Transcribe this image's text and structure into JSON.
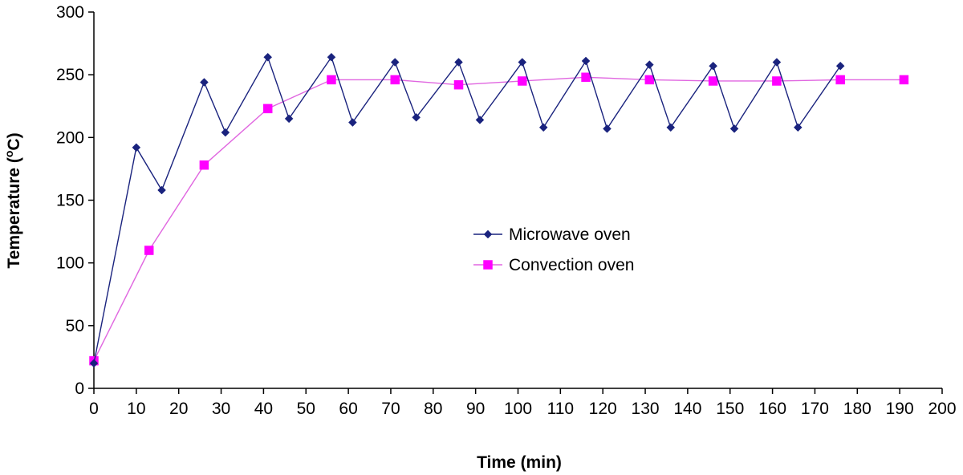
{
  "chart_data": {
    "type": "line",
    "title": "",
    "xlabel": "Time (min)",
    "ylabel_main": "Temperature (",
    "ylabel_sup": "o",
    "ylabel_end": "C)",
    "xlim": [
      0,
      200
    ],
    "ylim": [
      0,
      300
    ],
    "xticks": [
      0,
      10,
      20,
      30,
      40,
      50,
      60,
      70,
      80,
      90,
      100,
      110,
      120,
      130,
      140,
      150,
      160,
      170,
      180,
      190,
      200
    ],
    "yticks": [
      0,
      50,
      100,
      150,
      200,
      250,
      300
    ],
    "grid": false,
    "legend_position": "center",
    "series": [
      {
        "name": "Microwave oven",
        "color": "#1a237e",
        "marker": "diamond",
        "x": [
          0,
          10,
          16,
          26,
          31,
          41,
          46,
          56,
          61,
          71,
          76,
          86,
          91,
          101,
          106,
          116,
          121,
          131,
          136,
          146,
          151,
          161,
          166,
          176
        ],
        "y": [
          20,
          192,
          158,
          244,
          204,
          264,
          215,
          264,
          212,
          260,
          216,
          260,
          214,
          260,
          208,
          261,
          207,
          258,
          208,
          257,
          207,
          260,
          208,
          257
        ]
      },
      {
        "name": "Convection oven",
        "color": "#ff00ff",
        "line_color": "#e066e0",
        "marker": "square",
        "x": [
          0,
          13,
          26,
          41,
          56,
          71,
          86,
          101,
          116,
          131,
          146,
          161,
          176,
          191
        ],
        "y": [
          22,
          110,
          178,
          223,
          246,
          246,
          242,
          245,
          248,
          246,
          245,
          245,
          246,
          246
        ]
      }
    ]
  }
}
